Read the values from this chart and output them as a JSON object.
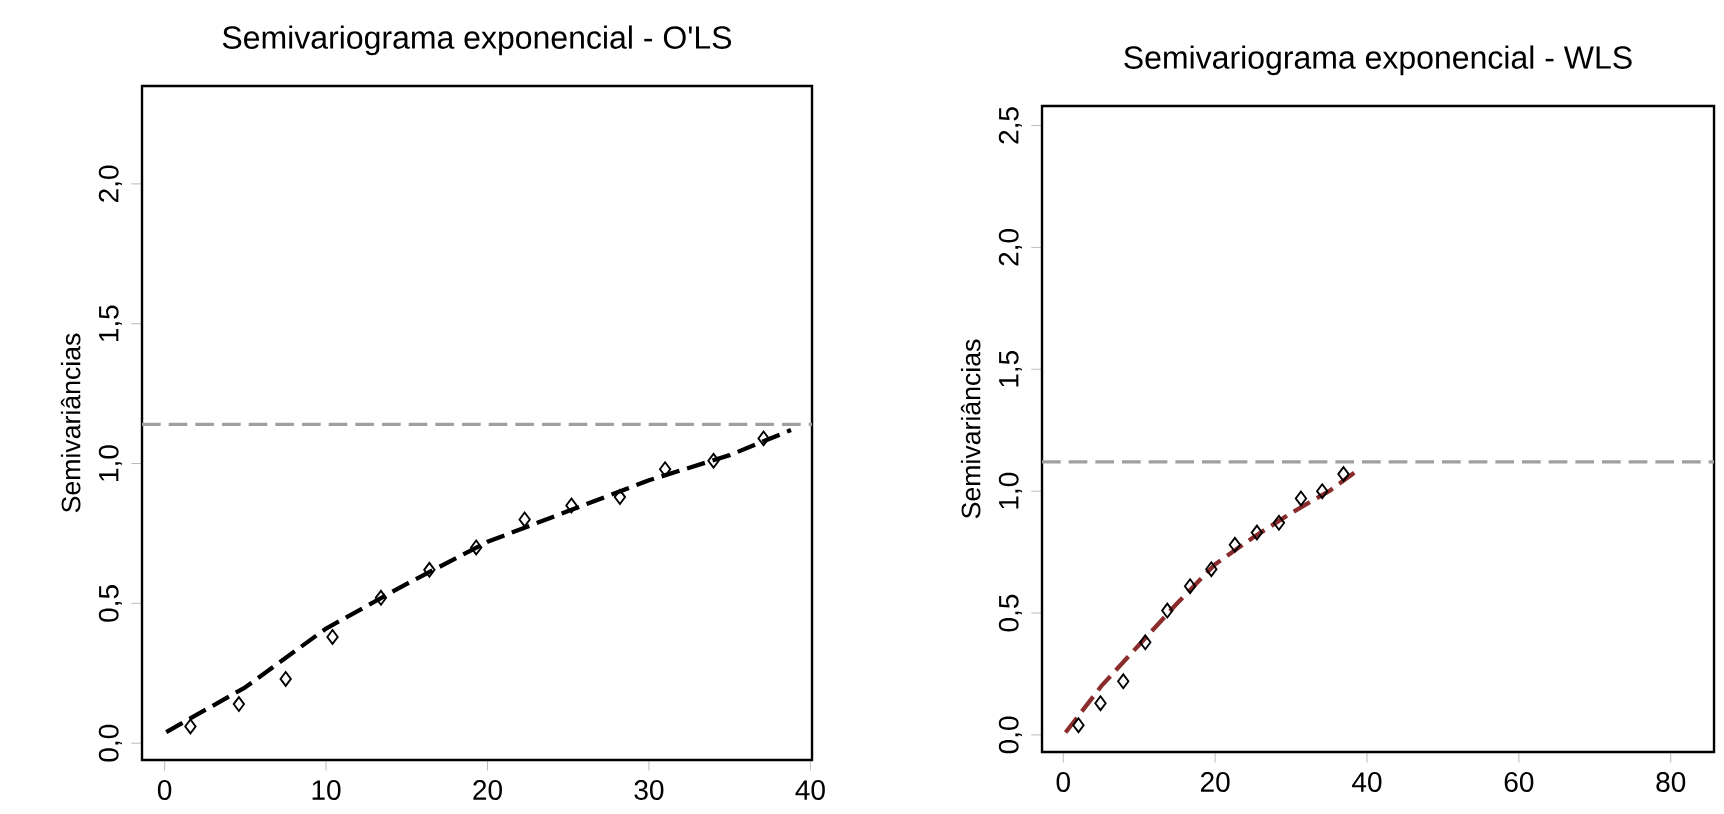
{
  "chart_data": [
    {
      "type": "scatter",
      "title": "Semivariograma exponencial - O'LS",
      "ylabel": "Semivariâncias",
      "xlim": [
        -1.4,
        40.1
      ],
      "ylim": [
        -0.06,
        2.35
      ],
      "xticks": [
        0,
        10,
        20,
        30,
        40
      ],
      "yticks": [
        {
          "value": 0,
          "label": "0,0"
        },
        {
          "value": 0.5,
          "label": "0,5"
        },
        {
          "value": 1,
          "label": "1,0"
        },
        {
          "value": 1.5,
          "label": "1,5"
        },
        {
          "value": 2,
          "label": "2,0"
        }
      ],
      "grid": false,
      "series": [
        {
          "marker": "diamond",
          "color": "#000000",
          "x": [
            1.6,
            4.6,
            7.5,
            10.4,
            13.4,
            16.4,
            19.3,
            22.3,
            25.2,
            28.2,
            31.0,
            34.0,
            37.1
          ],
          "values": [
            0.06,
            0.14,
            0.23,
            0.38,
            0.52,
            0.62,
            0.7,
            0.8,
            0.85,
            0.88,
            0.98,
            1.01,
            1.09
          ]
        },
        {
          "type": "line",
          "line_style": "dashed",
          "color": "#000000",
          "x": [
            0.1,
            5,
            10,
            15,
            20,
            25,
            30,
            35,
            38.8
          ],
          "values": [
            0.04,
            0.2,
            0.41,
            0.57,
            0.72,
            0.83,
            0.94,
            1.03,
            1.12
          ]
        }
      ],
      "ref_lines": [
        {
          "axis": "y",
          "value": 1.14,
          "color": "#a0a0a0",
          "line_style": "dashed"
        }
      ]
    },
    {
      "type": "scatter",
      "title": "Semivariograma exponencial - WLS",
      "ylabel": "Semivariâncias",
      "xlim": [
        -2.8,
        85.7
      ],
      "ylim": [
        -0.07,
        2.58
      ],
      "xticks": [
        0,
        20,
        40,
        60,
        80
      ],
      "yticks": [
        {
          "value": 0,
          "label": "0,0"
        },
        {
          "value": 0.5,
          "label": "0,5"
        },
        {
          "value": 1,
          "label": "1,0"
        },
        {
          "value": 1.5,
          "label": "1,5"
        },
        {
          "value": 2,
          "label": "2,0"
        },
        {
          "value": 2.5,
          "label": "2,5"
        }
      ],
      "grid": false,
      "series": [
        {
          "marker": "diamond",
          "color": "#000000",
          "x": [
            2.0,
            4.9,
            7.9,
            10.8,
            13.7,
            16.7,
            19.5,
            22.6,
            25.5,
            28.4,
            31.3,
            34.1,
            36.9
          ],
          "values": [
            0.04,
            0.13,
            0.22,
            0.38,
            0.51,
            0.61,
            0.68,
            0.78,
            0.83,
            0.87,
            0.97,
            1.0,
            1.07
          ]
        },
        {
          "type": "line",
          "line_style": "dashed",
          "color": "#8b2c2c",
          "x": [
            0.3,
            5,
            10,
            15,
            20,
            25,
            30,
            35,
            38.5
          ],
          "values": [
            0.01,
            0.2,
            0.37,
            0.54,
            0.7,
            0.81,
            0.91,
            1.0,
            1.08
          ]
        }
      ],
      "ref_lines": [
        {
          "axis": "y",
          "value": 1.12,
          "color": "#a0a0a0",
          "line_style": "dashed"
        }
      ]
    }
  ]
}
